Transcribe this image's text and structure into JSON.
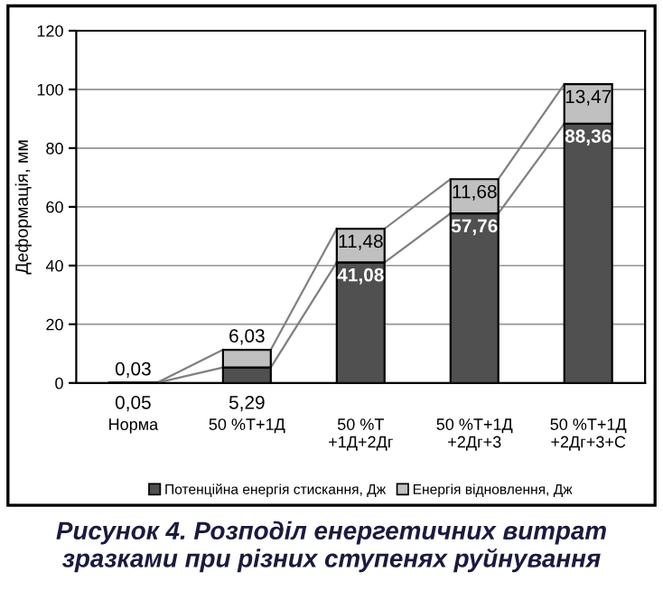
{
  "chart_data": {
    "type": "bar",
    "stacked": true,
    "ylabel": "Деформація, мм",
    "categories": [
      "Норма",
      "50 %Т+1Д",
      "50 %Т\n+1Д+2Дг",
      "50 %Т+1Д\n+2Дг+3",
      "50 %Т+1Д\n+2Дг+3+С"
    ],
    "series": [
      {
        "name": "Потенційна енергія стискання, Дж",
        "color": "#505050",
        "values": [
          0.05,
          5.29,
          41.08,
          57.76,
          88.36
        ],
        "value_labels": [
          "0,05",
          "5,29",
          "41,08",
          "57,76",
          "88,36"
        ]
      },
      {
        "name": "Енергія відновлення, Дж",
        "color": "#c0c0c0",
        "values": [
          0.03,
          6.03,
          11.48,
          11.68,
          13.47
        ],
        "value_labels": [
          "0,03",
          "6,03",
          "11,48",
          "11,68",
          "13,47"
        ]
      }
    ],
    "ylim": [
      0,
      120
    ],
    "yticks": [
      0,
      20,
      40,
      60,
      80,
      100,
      120
    ],
    "grid": "y",
    "legend": "bottom",
    "annotations": [
      "Рисунок 4. Розподіл енергетичних витрат зразками при різних ступенях руйнування"
    ]
  }
}
